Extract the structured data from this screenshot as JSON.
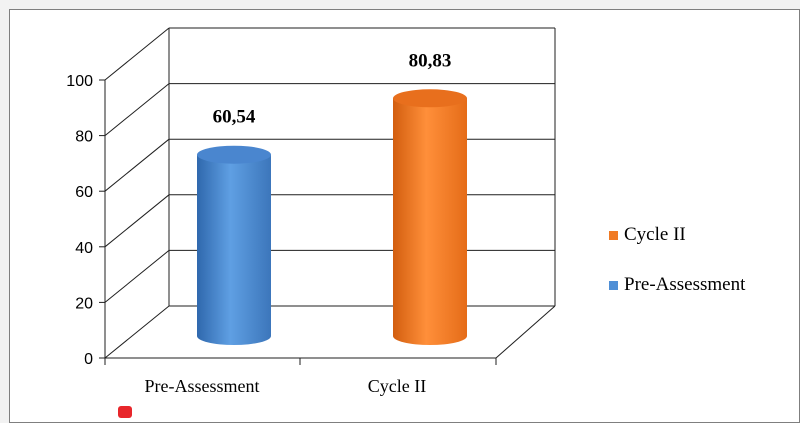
{
  "chart_data": {
    "type": "bar",
    "style": "3d-cylinder",
    "categories": [
      "Pre-Assessment",
      "Cycle II"
    ],
    "values": [
      60.54,
      80.83
    ],
    "data_labels": [
      "60,54",
      "80,83"
    ],
    "bar_colors": [
      "#4f8fd6",
      "#f07a24"
    ],
    "ylim": [
      0,
      100
    ],
    "yticks": [
      "0",
      "20",
      "40",
      "60",
      "80",
      "100"
    ],
    "grid": true,
    "legend": {
      "placement": "right",
      "entries": [
        {
          "label": "Cycle II",
          "color": "#f07a24"
        },
        {
          "label": "Pre-Assessment",
          "color": "#4f8fd6"
        }
      ]
    }
  }
}
